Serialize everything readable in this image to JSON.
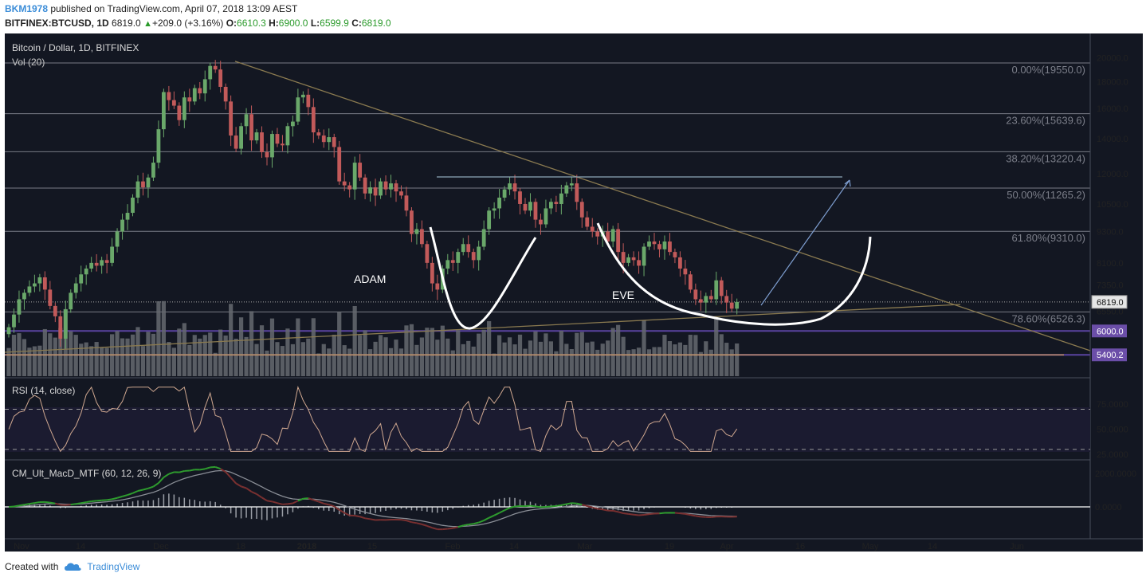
{
  "header": {
    "user": "BKM1978",
    "published": "published on TradingView.com, April 07, 2018 13:09 AEST",
    "symbol": "BITFINEX:BTCUSD, 1D",
    "last": "6819.0",
    "change_arrow": "▲",
    "change": "+209.0 (+3.16%)",
    "o_label": "O:",
    "o": "6610.3",
    "h_label": "H:",
    "h": "6900.0",
    "l_label": "L:",
    "l": "6599.9",
    "c_label": "C:",
    "c": "6819.0"
  },
  "footer": {
    "created_with": "Created with",
    "brand": "TradingView",
    "logo_icon": "tradingview-cloud-icon"
  },
  "colors": {
    "background": "#131722",
    "panel_border": "#4a4f5c",
    "up": "#6aa86a",
    "down": "#c25a5a",
    "volume": "#666a70",
    "fib_line": "#787b86",
    "trend": "#8a7a50",
    "price_tag": "#e6e6e6",
    "purple_tag": "#6b4ea8",
    "macd_green": "#2e9c2e",
    "macd_red": "#7a3030",
    "macd_grey": "#8a8e96",
    "rsi": "#d0a890",
    "annotation": "#ffffff",
    "arrow": "#7e9ed0"
  },
  "main_panel": {
    "title": "Bitcoin / Dollar, 1D, BITFINEX",
    "vol_label": "Vol (20)"
  },
  "rsi_panel": {
    "title": "RSI (14, close)"
  },
  "macd_panel": {
    "title": "CM_Ult_MacD_MTF (60, 12, 26, 9)"
  },
  "annotations": {
    "adam": "ADAM",
    "eve": "EVE"
  },
  "chart_data": {
    "type": "candlestick",
    "title": "Bitcoin / Dollar, 1D, BITFINEX",
    "y_scale": "log",
    "ylim": [
      5200,
      21500
    ],
    "x_labels": [
      "Nov",
      "14",
      "Dec",
      "18",
      "2018",
      "15",
      "Feb",
      "14",
      "Mar",
      "19",
      "Apr",
      "16",
      "May",
      "14",
      "Jun"
    ],
    "price_ticks": [
      "20000.0",
      "18000.0",
      "16000.0",
      "14000.0",
      "12000.0",
      "10500.0",
      "9300.0",
      "8100.0",
      "7350.0",
      "6550.0"
    ],
    "fib_levels": [
      {
        "label": "0.00%(19550.0)",
        "value": 19550.0
      },
      {
        "label": "23.60%(15639.6)",
        "value": 15639.6
      },
      {
        "label": "38.20%(13220.4)",
        "value": 13220.4
      },
      {
        "label": "50.00%(11265.2)",
        "value": 11265.2
      },
      {
        "label": "61.80%(9310.0)",
        "value": 9310.0
      },
      {
        "label": "78.60%(6526.3)",
        "value": 6526.3
      }
    ],
    "current_price": {
      "label": "6819.0",
      "value": 6819.0
    },
    "purple_levels": [
      {
        "label": "6000.0",
        "value": 6000.0
      },
      {
        "label": "5400.2",
        "value": 5400.2
      }
    ],
    "closes": [
      6100,
      6450,
      6900,
      7100,
      7300,
      7400,
      7600,
      7200,
      6700,
      6400,
      5800,
      6600,
      7100,
      7400,
      7700,
      7900,
      8100,
      8000,
      8200,
      8100,
      8700,
      9300,
      9800,
      10100,
      10800,
      11600,
      11300,
      11800,
      12600,
      14600,
      17200,
      16600,
      16200,
      15200,
      16800,
      16500,
      17500,
      17100,
      18200,
      19300,
      19000,
      17600,
      16500,
      14200,
      13400,
      14800,
      15600,
      13900,
      14400,
      13200,
      12900,
      14300,
      13700,
      13600,
      14800,
      15100,
      16800,
      17000,
      16100,
      14400,
      14200,
      13800,
      14100,
      13500,
      11600,
      11400,
      11200,
      12600,
      11800,
      11000,
      11300,
      10900,
      11600,
      11200,
      11500,
      11100,
      10900,
      10200,
      9200,
      9400,
      8800,
      8100,
      7400,
      7200,
      7900,
      8200,
      8100,
      8500,
      8800,
      8500,
      8200,
      8700,
      9400,
      10200,
      10300,
      10800,
      11200,
      11500,
      11100,
      10500,
      10200,
      10600,
      9800,
      9600,
      10300,
      10600,
      10500,
      11000,
      11400,
      11500,
      10600,
      9900,
      9500,
      9300,
      9100,
      9300,
      8900,
      9400,
      8500,
      8100,
      8300,
      8200,
      8000,
      8700,
      8900,
      8800,
      8600,
      8900,
      8500,
      8300,
      7900,
      7700,
      7200,
      6900,
      6800,
      7000,
      6900,
      7500,
      7000,
      6800,
      6620,
      6819
    ],
    "rsi": {
      "levels": [
        70,
        30
      ],
      "ticks": [
        "75.0000",
        "50.0000",
        "25.0000"
      ],
      "ylim": [
        22,
        95
      ]
    },
    "macd": {
      "ticks": [
        "2000.0000",
        "0.0000"
      ],
      "ylim": [
        -1200,
        2300
      ]
    }
  }
}
